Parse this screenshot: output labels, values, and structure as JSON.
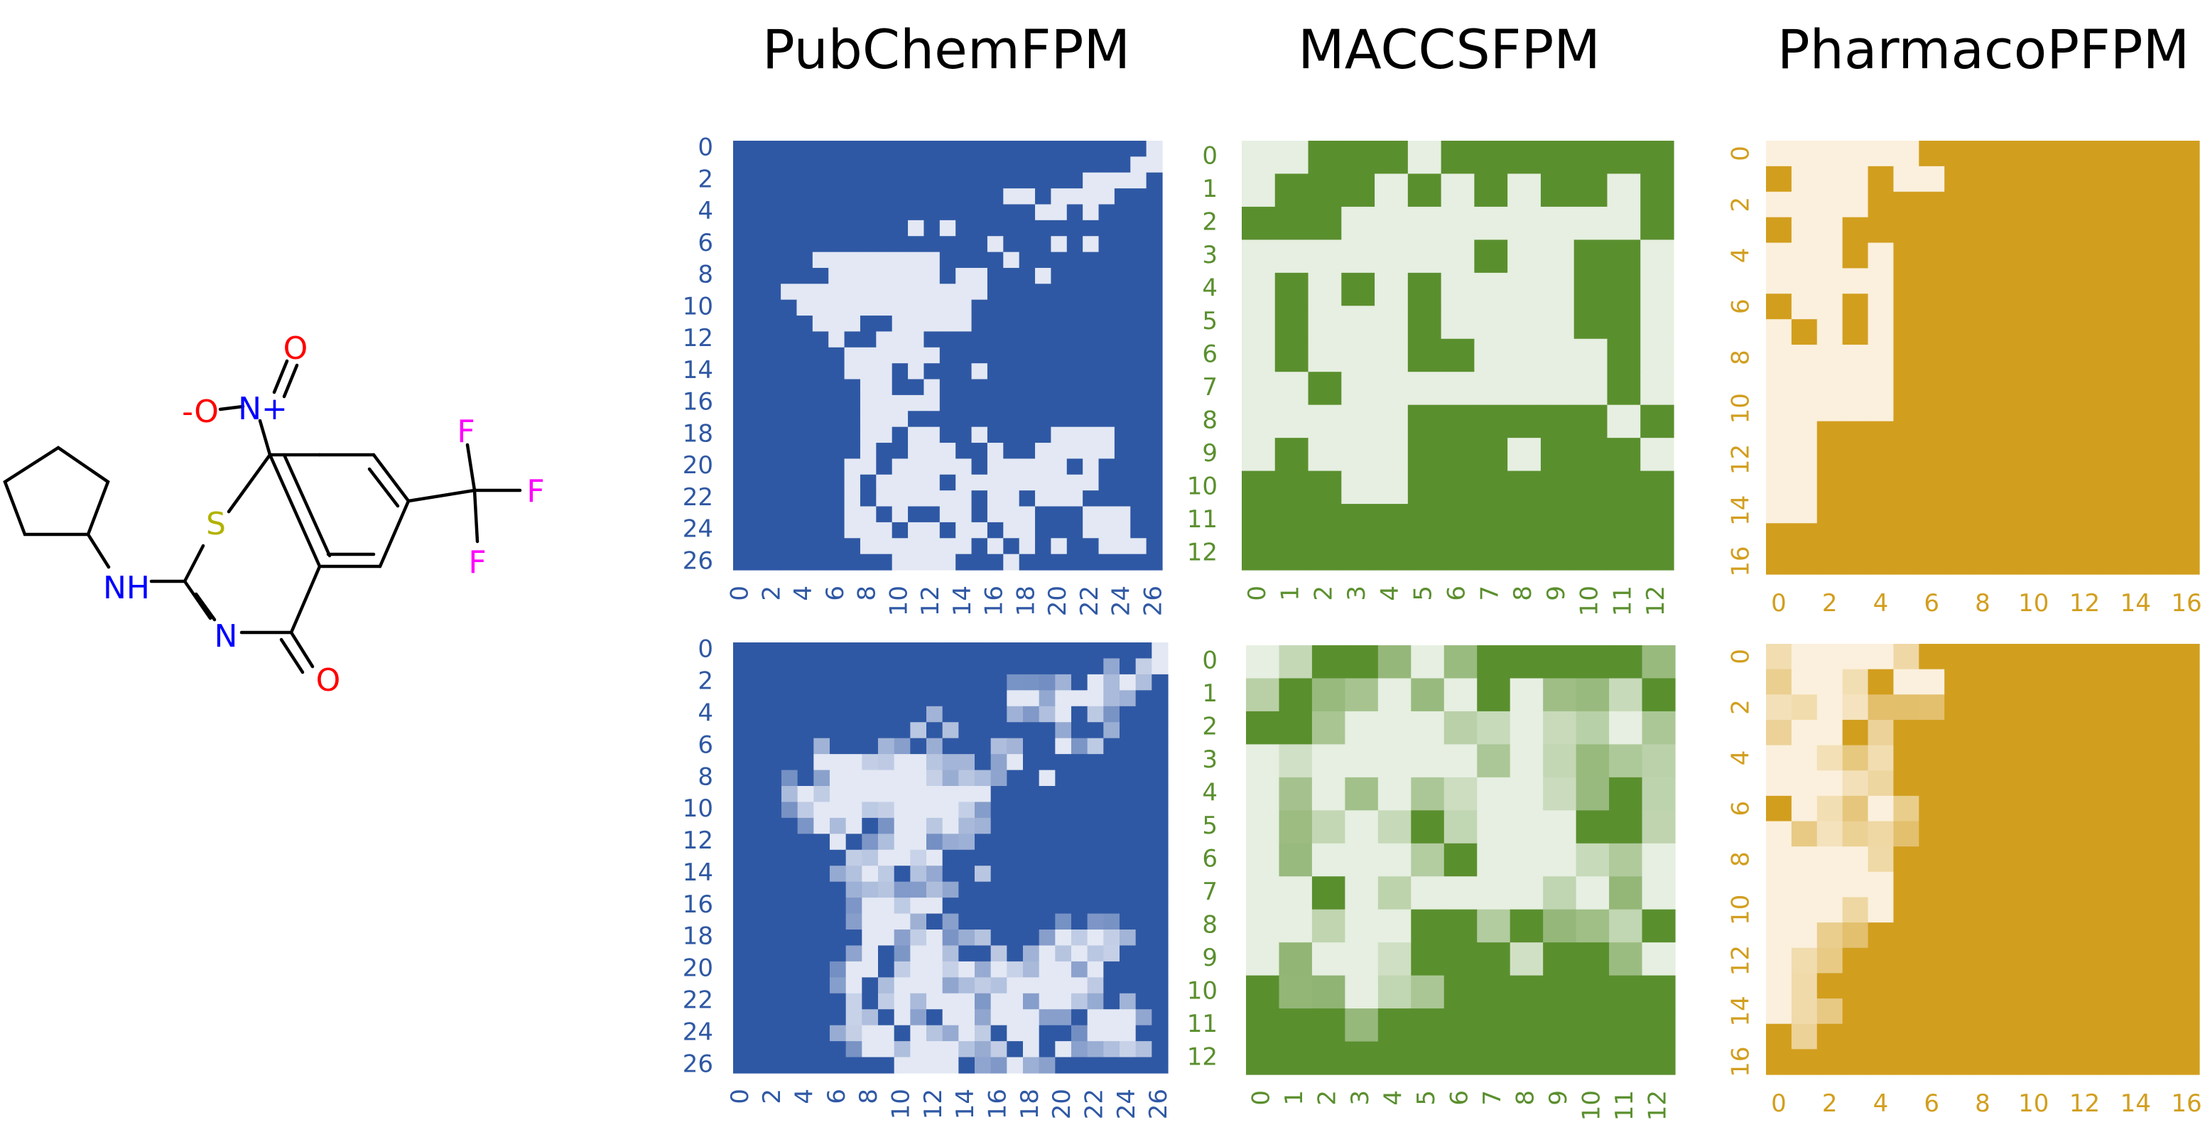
{
  "titles": [
    "PubChemFPM",
    "MACCSFPM",
    "PharmacoPFPM"
  ],
  "molecule": {
    "labels": {
      "nitro_n": "N+",
      "nitro_o_double": "O",
      "nitro_o_single": "-O",
      "sulfur": "S",
      "nh": "NH",
      "ring_n": "N",
      "carbonyl_o": "O",
      "f1": "F",
      "f2": "F",
      "f3": "F"
    },
    "colors": {
      "bond": "#000000",
      "N": "#0000ff",
      "O": "#ff0000",
      "S": "#b2b200",
      "F": "#ff00ff"
    }
  },
  "chart_data": [
    {
      "type": "heatmap",
      "name": "PubChemFPM (binary)",
      "size": 27,
      "ticks": [
        0,
        2,
        4,
        6,
        8,
        10,
        12,
        14,
        16,
        18,
        20,
        22,
        24,
        26
      ],
      "colors": {
        "high": "#2f58a4",
        "low": "#e3e8f4",
        "tick": "#2f58a4"
      },
      "cells_low": [
        [
          0,
          26
        ],
        [
          1,
          25
        ],
        [
          1,
          26
        ],
        [
          2,
          22
        ],
        [
          2,
          23
        ],
        [
          2,
          24
        ],
        [
          2,
          25
        ],
        [
          3,
          17
        ],
        [
          3,
          18
        ],
        [
          3,
          20
        ],
        [
          3,
          21
        ],
        [
          3,
          22
        ],
        [
          3,
          23
        ],
        [
          4,
          19
        ],
        [
          4,
          20
        ],
        [
          4,
          22
        ],
        [
          5,
          11
        ],
        [
          5,
          13
        ],
        [
          6,
          16
        ],
        [
          6,
          20
        ],
        [
          6,
          22
        ],
        [
          7,
          5
        ],
        [
          7,
          6
        ],
        [
          7,
          7
        ],
        [
          7,
          8
        ],
        [
          7,
          9
        ],
        [
          7,
          10
        ],
        [
          7,
          11
        ],
        [
          7,
          12
        ],
        [
          7,
          17
        ],
        [
          8,
          6
        ],
        [
          8,
          7
        ],
        [
          8,
          8
        ],
        [
          8,
          9
        ],
        [
          8,
          10
        ],
        [
          8,
          11
        ],
        [
          8,
          12
        ],
        [
          8,
          14
        ],
        [
          8,
          15
        ],
        [
          8,
          19
        ],
        [
          9,
          3
        ],
        [
          9,
          4
        ],
        [
          9,
          5
        ],
        [
          9,
          6
        ],
        [
          9,
          7
        ],
        [
          9,
          8
        ],
        [
          9,
          9
        ],
        [
          9,
          10
        ],
        [
          9,
          11
        ],
        [
          9,
          12
        ],
        [
          9,
          13
        ],
        [
          9,
          14
        ],
        [
          9,
          15
        ],
        [
          10,
          4
        ],
        [
          10,
          5
        ],
        [
          10,
          6
        ],
        [
          10,
          7
        ],
        [
          10,
          8
        ],
        [
          10,
          9
        ],
        [
          10,
          10
        ],
        [
          10,
          11
        ],
        [
          10,
          12
        ],
        [
          10,
          13
        ],
        [
          10,
          14
        ],
        [
          11,
          5
        ],
        [
          11,
          6
        ],
        [
          11,
          7
        ],
        [
          11,
          10
        ],
        [
          11,
          11
        ],
        [
          11,
          12
        ],
        [
          11,
          13
        ],
        [
          11,
          14
        ],
        [
          12,
          6
        ],
        [
          12,
          9
        ],
        [
          12,
          10
        ],
        [
          12,
          11
        ],
        [
          13,
          7
        ],
        [
          13,
          8
        ],
        [
          13,
          9
        ],
        [
          13,
          10
        ],
        [
          13,
          11
        ],
        [
          13,
          12
        ],
        [
          14,
          7
        ],
        [
          14,
          8
        ],
        [
          14,
          9
        ],
        [
          14,
          11
        ],
        [
          14,
          15
        ],
        [
          15,
          8
        ],
        [
          15,
          9
        ],
        [
          15,
          12
        ],
        [
          16,
          8
        ],
        [
          16,
          9
        ],
        [
          16,
          10
        ],
        [
          16,
          11
        ],
        [
          16,
          12
        ],
        [
          17,
          8
        ],
        [
          17,
          9
        ],
        [
          17,
          10
        ],
        [
          18,
          8
        ],
        [
          18,
          9
        ],
        [
          18,
          11
        ],
        [
          18,
          12
        ],
        [
          18,
          15
        ],
        [
          18,
          20
        ],
        [
          18,
          21
        ],
        [
          18,
          22
        ],
        [
          18,
          23
        ],
        [
          19,
          8
        ],
        [
          19,
          11
        ],
        [
          19,
          12
        ],
        [
          19,
          13
        ],
        [
          19,
          16
        ],
        [
          19,
          19
        ],
        [
          19,
          20
        ],
        [
          19,
          21
        ],
        [
          19,
          22
        ],
        [
          19,
          23
        ],
        [
          20,
          7
        ],
        [
          20,
          8
        ],
        [
          20,
          10
        ],
        [
          20,
          11
        ],
        [
          20,
          12
        ],
        [
          20,
          13
        ],
        [
          20,
          14
        ],
        [
          20,
          16
        ],
        [
          20,
          17
        ],
        [
          20,
          18
        ],
        [
          20,
          19
        ],
        [
          20,
          20
        ],
        [
          20,
          22
        ],
        [
          21,
          7
        ],
        [
          21,
          9
        ],
        [
          21,
          10
        ],
        [
          21,
          11
        ],
        [
          21,
          12
        ],
        [
          21,
          14
        ],
        [
          21,
          15
        ],
        [
          21,
          16
        ],
        [
          21,
          17
        ],
        [
          21,
          18
        ],
        [
          21,
          19
        ],
        [
          21,
          20
        ],
        [
          21,
          21
        ],
        [
          21,
          22
        ],
        [
          22,
          7
        ],
        [
          22,
          9
        ],
        [
          22,
          10
        ],
        [
          22,
          11
        ],
        [
          22,
          12
        ],
        [
          22,
          13
        ],
        [
          22,
          14
        ],
        [
          22,
          16
        ],
        [
          22,
          17
        ],
        [
          22,
          19
        ],
        [
          22,
          20
        ],
        [
          22,
          21
        ],
        [
          23,
          7
        ],
        [
          23,
          8
        ],
        [
          23,
          10
        ],
        [
          23,
          13
        ],
        [
          23,
          14
        ],
        [
          23,
          16
        ],
        [
          23,
          17
        ],
        [
          23,
          18
        ],
        [
          23,
          22
        ],
        [
          23,
          23
        ],
        [
          23,
          24
        ],
        [
          24,
          7
        ],
        [
          24,
          8
        ],
        [
          24,
          9
        ],
        [
          24,
          11
        ],
        [
          24,
          12
        ],
        [
          24,
          14
        ],
        [
          24,
          15
        ],
        [
          24,
          17
        ],
        [
          24,
          18
        ],
        [
          24,
          22
        ],
        [
          24,
          23
        ],
        [
          24,
          24
        ],
        [
          25,
          8
        ],
        [
          25,
          9
        ],
        [
          25,
          10
        ],
        [
          25,
          11
        ],
        [
          25,
          12
        ],
        [
          25,
          13
        ],
        [
          25,
          14
        ],
        [
          25,
          16
        ],
        [
          25,
          18
        ],
        [
          25,
          20
        ],
        [
          25,
          23
        ],
        [
          25,
          24
        ],
        [
          25,
          25
        ],
        [
          26,
          10
        ],
        [
          26,
          11
        ],
        [
          26,
          12
        ],
        [
          26,
          13
        ],
        [
          26,
          17
        ]
      ]
    },
    {
      "type": "heatmap",
      "name": "MACCSFPM (binary)",
      "size": 13,
      "ticks": [
        0,
        1,
        2,
        3,
        4,
        5,
        6,
        7,
        8,
        9,
        10,
        11,
        12
      ],
      "colors": {
        "high": "#5a8f2e",
        "low": "#e6efe1",
        "tick": "#5a8f2e"
      },
      "cells_low": [
        [
          0,
          0
        ],
        [
          0,
          1
        ],
        [
          0,
          5
        ],
        [
          1,
          0
        ],
        [
          1,
          4
        ],
        [
          1,
          6
        ],
        [
          1,
          8
        ],
        [
          1,
          11
        ],
        [
          2,
          3
        ],
        [
          2,
          4
        ],
        [
          2,
          5
        ],
        [
          2,
          6
        ],
        [
          2,
          7
        ],
        [
          2,
          8
        ],
        [
          2,
          9
        ],
        [
          2,
          10
        ],
        [
          2,
          11
        ],
        [
          3,
          0
        ],
        [
          3,
          1
        ],
        [
          3,
          2
        ],
        [
          3,
          3
        ],
        [
          3,
          4
        ],
        [
          3,
          5
        ],
        [
          3,
          6
        ],
        [
          3,
          8
        ],
        [
          3,
          9
        ],
        [
          3,
          12
        ],
        [
          4,
          0
        ],
        [
          4,
          2
        ],
        [
          4,
          4
        ],
        [
          4,
          6
        ],
        [
          4,
          7
        ],
        [
          4,
          8
        ],
        [
          4,
          9
        ],
        [
          4,
          12
        ],
        [
          5,
          0
        ],
        [
          5,
          2
        ],
        [
          5,
          3
        ],
        [
          5,
          4
        ],
        [
          5,
          6
        ],
        [
          5,
          7
        ],
        [
          5,
          8
        ],
        [
          5,
          9
        ],
        [
          5,
          12
        ],
        [
          6,
          0
        ],
        [
          6,
          2
        ],
        [
          6,
          3
        ],
        [
          6,
          4
        ],
        [
          6,
          7
        ],
        [
          6,
          8
        ],
        [
          6,
          9
        ],
        [
          6,
          10
        ],
        [
          6,
          12
        ],
        [
          7,
          0
        ],
        [
          7,
          1
        ],
        [
          7,
          3
        ],
        [
          7,
          4
        ],
        [
          7,
          5
        ],
        [
          7,
          6
        ],
        [
          7,
          7
        ],
        [
          7,
          8
        ],
        [
          7,
          9
        ],
        [
          7,
          10
        ],
        [
          7,
          12
        ],
        [
          8,
          0
        ],
        [
          8,
          1
        ],
        [
          8,
          2
        ],
        [
          8,
          3
        ],
        [
          8,
          4
        ],
        [
          8,
          11
        ],
        [
          9,
          0
        ],
        [
          9,
          2
        ],
        [
          9,
          3
        ],
        [
          9,
          4
        ],
        [
          9,
          8
        ],
        [
          9,
          12
        ],
        [
          10,
          3
        ],
        [
          10,
          4
        ]
      ]
    },
    {
      "type": "heatmap",
      "name": "PharmacoPFPM (binary)",
      "size": 17,
      "ticks": [
        0,
        2,
        4,
        6,
        8,
        10,
        12,
        14,
        16
      ],
      "colors": {
        "high": "#d29e1e",
        "low": "#fbf0dd",
        "tick": "#d29e1e"
      },
      "cells_low": [
        [
          0,
          0
        ],
        [
          0,
          1
        ],
        [
          0,
          2
        ],
        [
          0,
          3
        ],
        [
          0,
          4
        ],
        [
          0,
          5
        ],
        [
          1,
          1
        ],
        [
          1,
          2
        ],
        [
          1,
          3
        ],
        [
          1,
          5
        ],
        [
          1,
          6
        ],
        [
          2,
          0
        ],
        [
          2,
          1
        ],
        [
          2,
          2
        ],
        [
          2,
          3
        ],
        [
          3,
          1
        ],
        [
          3,
          2
        ],
        [
          4,
          0
        ],
        [
          4,
          1
        ],
        [
          4,
          2
        ],
        [
          4,
          4
        ],
        [
          5,
          0
        ],
        [
          5,
          1
        ],
        [
          5,
          2
        ],
        [
          5,
          3
        ],
        [
          5,
          4
        ],
        [
          6,
          1
        ],
        [
          6,
          2
        ],
        [
          6,
          4
        ],
        [
          7,
          0
        ],
        [
          7,
          2
        ],
        [
          7,
          4
        ],
        [
          8,
          0
        ],
        [
          8,
          1
        ],
        [
          8,
          2
        ],
        [
          8,
          3
        ],
        [
          8,
          4
        ],
        [
          9,
          0
        ],
        [
          9,
          1
        ],
        [
          9,
          2
        ],
        [
          9,
          3
        ],
        [
          9,
          4
        ],
        [
          10,
          0
        ],
        [
          10,
          1
        ],
        [
          10,
          2
        ],
        [
          10,
          3
        ],
        [
          10,
          4
        ],
        [
          11,
          0
        ],
        [
          11,
          1
        ],
        [
          12,
          0
        ],
        [
          12,
          1
        ],
        [
          13,
          0
        ],
        [
          13,
          1
        ],
        [
          14,
          0
        ],
        [
          14,
          1
        ]
      ]
    },
    {
      "type": "heatmap",
      "name": "PubChemFPM (continuous)",
      "size": 27,
      "ticks": [
        0,
        2,
        4,
        6,
        8,
        10,
        12,
        14,
        16,
        18,
        20,
        22,
        24,
        26
      ],
      "colors": {
        "high": "#2f58a4",
        "low": "#e3e8f4",
        "tick": "#2f58a4"
      },
      "derived_from": 0
    },
    {
      "type": "heatmap",
      "name": "MACCSFPM (continuous)",
      "size": 13,
      "ticks": [
        0,
        1,
        2,
        3,
        4,
        5,
        6,
        7,
        8,
        9,
        10,
        11,
        12
      ],
      "colors": {
        "high": "#5a8f2e",
        "low": "#e6efe1",
        "tick": "#5a8f2e"
      },
      "derived_from": 1
    },
    {
      "type": "heatmap",
      "name": "PharmacoPFPM (continuous)",
      "size": 17,
      "ticks": [
        0,
        2,
        4,
        6,
        8,
        10,
        12,
        14,
        16
      ],
      "colors": {
        "high": "#d29e1e",
        "low": "#fbf0dd",
        "tick": "#d29e1e"
      },
      "derived_from": 2
    }
  ]
}
